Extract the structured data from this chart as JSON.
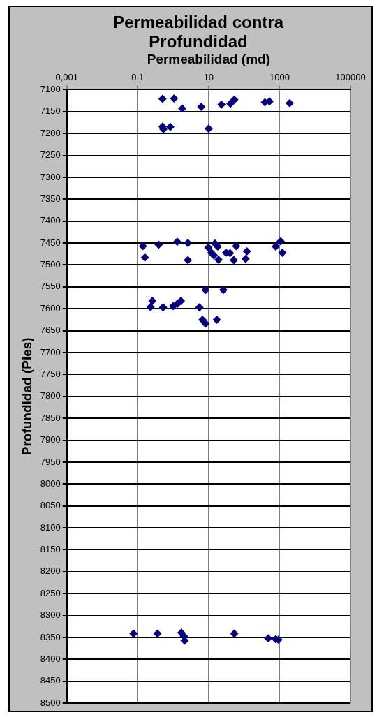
{
  "chart_data": {
    "type": "scatter",
    "title": "Permeabilidad contra Profundidad",
    "xlabel": "Permeabilidad (md)",
    "ylabel": "Profundidad (Pies)",
    "log": "x",
    "grid": true,
    "legend": false,
    "marker": "diamond",
    "xlim": [
      0.001,
      100000
    ],
    "xticks": [
      {
        "value": 0.001,
        "label": "0,001"
      },
      {
        "value": 0.1,
        "label": "0,1"
      },
      10,
      1000,
      100000
    ],
    "ylim": [
      8500,
      7100
    ],
    "yticks": [
      7100,
      7150,
      7200,
      7250,
      7300,
      7350,
      7400,
      7450,
      7500,
      7550,
      7600,
      7650,
      7700,
      7750,
      7800,
      7850,
      7900,
      7950,
      8000,
      8050,
      8100,
      8150,
      8200,
      8250,
      8300,
      8350,
      8400,
      8450,
      8500
    ],
    "series": [
      {
        "color": "#000080",
        "x": [
          0.5,
          1.06,
          1.8,
          6.2,
          23,
          41,
          53,
          385,
          518,
          1930,
          0.5,
          0.53,
          0.83,
          10,
          0.14,
          0.16,
          0.39,
          1.3,
          2.6,
          2.6,
          8.2,
          26,
          9.8,
          15,
          18,
          12,
          14,
          19,
          31,
          40,
          60,
          120,
          110,
          51,
          1070,
          780,
          1200,
          0.26,
          0.23,
          0.46,
          0.52,
          1.0,
          1.3,
          1.65,
          5.5,
          6.7,
          8.2,
          17,
          0.076,
          0.36,
          1.7,
          2.0,
          2.1,
          53,
          480,
          780,
          930
        ],
        "values": [
          7121,
          7120,
          7143,
          7139,
          7134,
          7132,
          7123,
          7129,
          7127,
          7131,
          7184,
          7190,
          7185,
          7189,
          7457,
          7483,
          7454,
          7447,
          7450,
          7489,
          7557,
          7557,
          7460,
          7451,
          7458,
          7472,
          7478,
          7488,
          7472,
          7473,
          7457,
          7469,
          7486,
          7489,
          7446,
          7458,
          7472,
          7582,
          7596,
          null,
          7597,
          7594,
          7589,
          7582,
          7597,
          7625,
          7634,
          7625,
          8341,
          8341,
          8339,
          8347,
          8357,
          8341,
          8352,
          8354,
          8355
        ]
      }
    ]
  }
}
